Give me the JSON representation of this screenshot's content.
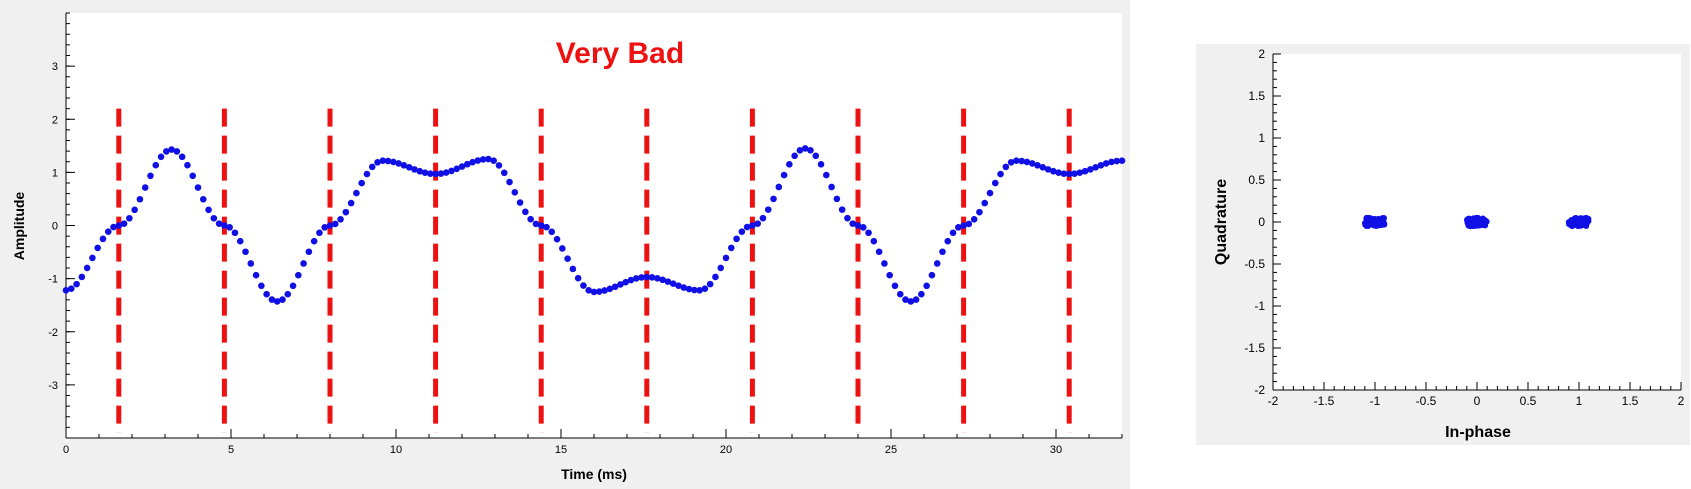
{
  "annotation": "Very Bad",
  "colors": {
    "signal": "#1010e6",
    "sample_markers": "#ee1111",
    "annotation": "#ee1111",
    "panel_background": "#f0f0f0",
    "plot_background": "#ffffff"
  },
  "chart_data": [
    {
      "type": "scatter",
      "title": "",
      "xlabel": "Time (ms)",
      "ylabel": "Amplitude",
      "xlim": [
        0,
        32
      ],
      "ylim": [
        -4,
        4
      ],
      "xticks": [
        "0",
        "5",
        "10",
        "15",
        "20",
        "25",
        "30"
      ],
      "yticks": [
        "-3",
        "-2",
        "-1",
        "0",
        "1",
        "2",
        "3"
      ],
      "grid": false,
      "symbols": [
        {
          "t": 0.0,
          "v": -1.22
        },
        {
          "t": 1.6,
          "v": 0.0
        },
        {
          "t": 3.2,
          "v": 1.43
        },
        {
          "t": 4.8,
          "v": 0.0
        },
        {
          "t": 6.4,
          "v": -1.43
        },
        {
          "t": 8.0,
          "v": 0.0
        },
        {
          "t": 9.6,
          "v": 1.22
        },
        {
          "t": 11.2,
          "v": 0.97
        },
        {
          "t": 12.8,
          "v": 1.25
        },
        {
          "t": 14.4,
          "v": 0.0
        },
        {
          "t": 16.0,
          "v": -1.25
        },
        {
          "t": 17.6,
          "v": -0.97
        },
        {
          "t": 19.2,
          "v": -1.22
        },
        {
          "t": 20.8,
          "v": 0.0
        },
        {
          "t": 22.4,
          "v": 1.45
        },
        {
          "t": 24.0,
          "v": 0.0
        },
        {
          "t": 25.6,
          "v": -1.43
        },
        {
          "t": 27.2,
          "v": 0.0
        },
        {
          "t": 28.8,
          "v": 1.22
        },
        {
          "t": 30.4,
          "v": 0.97
        },
        {
          "t": 32.0,
          "v": 1.22
        }
      ],
      "sample_times": [
        1.6,
        4.8,
        8.0,
        11.2,
        14.4,
        17.6,
        20.8,
        24.0,
        27.2,
        30.4
      ],
      "sample_marker_range": [
        -3.9,
        2.2
      ]
    },
    {
      "type": "scatter",
      "title": "",
      "xlabel": "In-phase",
      "ylabel": "Quadrature",
      "xlim": [
        -2,
        2
      ],
      "ylim": [
        -2,
        2
      ],
      "xticks": [
        "-2",
        "-1.5",
        "-1",
        "-0.5",
        "0",
        "0.5",
        "1",
        "1.5",
        "2"
      ],
      "yticks": [
        "-2",
        "-1.5",
        "-1",
        "-0.5",
        "0",
        "0.5",
        "1",
        "1.5",
        "2"
      ],
      "grid": false,
      "clusters": [
        {
          "i": -1.0,
          "q": 0.0
        },
        {
          "i": 0.0,
          "q": 0.0
        },
        {
          "i": 1.0,
          "q": 0.0
        }
      ]
    }
  ]
}
